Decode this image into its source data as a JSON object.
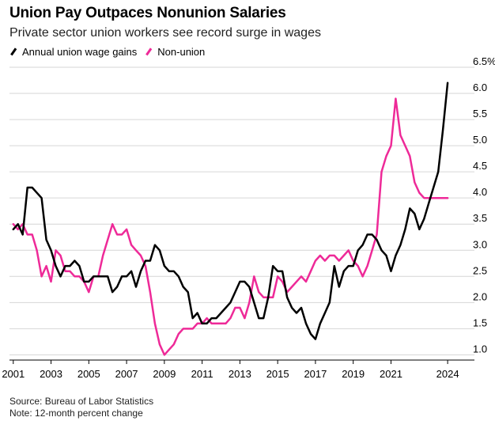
{
  "title": "Union Pay Outpaces Nonunion Salaries",
  "subtitle": "Private sector union workers see record surge in wages",
  "legend": [
    {
      "label": "Annual union wage gains",
      "color": "#000000"
    },
    {
      "label": "Non-union",
      "color": "#ee2a98"
    }
  ],
  "source": "Source: Bureau of Labor Statistics",
  "note": "Note: 12-month percent change",
  "chart_data": {
    "type": "line",
    "title": "Union Pay Outpaces Nonunion Salaries",
    "subtitle": "Private sector union workers see record surge in wages",
    "xlabel": "",
    "ylabel": "",
    "xlim": [
      2000.8,
      2025.0
    ],
    "ylim": [
      0.9,
      6.5
    ],
    "y_ticks": [
      1.0,
      1.5,
      2.0,
      2.5,
      3.0,
      3.5,
      4.0,
      4.5,
      5.0,
      5.5,
      6.0,
      6.5
    ],
    "y_tick_labels": [
      "1.0",
      "1.5",
      "2.0",
      "2.5",
      "3.0",
      "3.5",
      "4.0",
      "4.5",
      "5.0",
      "5.5",
      "6.0",
      "6.5%"
    ],
    "x_ticks": [
      2001,
      2003,
      2005,
      2007,
      2009,
      2011,
      2013,
      2015,
      2017,
      2019,
      2021,
      2024
    ],
    "x_tick_labels": [
      "2001",
      "2003",
      "2005",
      "2007",
      "2009",
      "2011",
      "2013",
      "2015",
      "2017",
      "2019",
      "2021",
      "2024"
    ],
    "grid": true,
    "legend_position": "top-left",
    "series": [
      {
        "name": "Annual union wage gains",
        "color": "#000000",
        "x": [
          2001.0,
          2001.25,
          2001.5,
          2001.75,
          2002.0,
          2002.25,
          2002.5,
          2002.75,
          2003.0,
          2003.25,
          2003.5,
          2003.75,
          2004.0,
          2004.25,
          2004.5,
          2004.75,
          2005.0,
          2005.25,
          2005.5,
          2005.75,
          2006.0,
          2006.25,
          2006.5,
          2006.75,
          2007.0,
          2007.25,
          2007.5,
          2007.75,
          2008.0,
          2008.25,
          2008.5,
          2008.75,
          2009.0,
          2009.25,
          2009.5,
          2009.75,
          2010.0,
          2010.25,
          2010.5,
          2010.75,
          2011.0,
          2011.25,
          2011.5,
          2011.75,
          2012.0,
          2012.25,
          2012.5,
          2012.75,
          2013.0,
          2013.25,
          2013.5,
          2013.75,
          2014.0,
          2014.25,
          2014.5,
          2014.75,
          2015.0,
          2015.25,
          2015.5,
          2015.75,
          2016.0,
          2016.25,
          2016.5,
          2016.75,
          2017.0,
          2017.25,
          2017.5,
          2017.75,
          2018.0,
          2018.25,
          2018.5,
          2018.75,
          2019.0,
          2019.25,
          2019.5,
          2019.75,
          2020.0,
          2020.25,
          2020.5,
          2020.75,
          2021.0,
          2021.25,
          2021.5,
          2021.75,
          2022.0,
          2022.25,
          2022.5,
          2022.75,
          2023.0,
          2023.25,
          2023.5,
          2023.75,
          2024.0
        ],
        "values": [
          3.4,
          3.5,
          3.3,
          4.2,
          4.2,
          4.1,
          4.0,
          3.2,
          3.0,
          2.7,
          2.5,
          2.7,
          2.7,
          2.8,
          2.7,
          2.4,
          2.4,
          2.5,
          2.5,
          2.5,
          2.5,
          2.2,
          2.3,
          2.5,
          2.5,
          2.6,
          2.3,
          2.6,
          2.8,
          2.8,
          3.1,
          3.0,
          2.7,
          2.6,
          2.6,
          2.5,
          2.3,
          2.2,
          1.7,
          1.8,
          1.6,
          1.6,
          1.7,
          1.7,
          1.8,
          1.9,
          2.0,
          2.2,
          2.4,
          2.4,
          2.3,
          2.0,
          1.7,
          1.7,
          2.1,
          2.7,
          2.6,
          2.6,
          2.1,
          1.9,
          1.8,
          1.9,
          1.6,
          1.4,
          1.3,
          1.6,
          1.8,
          2.0,
          2.7,
          2.3,
          2.6,
          2.7,
          2.7,
          3.0,
          3.1,
          3.3,
          3.3,
          3.2,
          3.0,
          2.9,
          2.6,
          2.9,
          3.1,
          3.4,
          3.8,
          3.7,
          3.4,
          3.6,
          3.9,
          4.2,
          4.5,
          5.3,
          6.2
        ]
      },
      {
        "name": "Non-union",
        "color": "#ee2a98",
        "x": [
          2001.0,
          2001.25,
          2001.5,
          2001.75,
          2002.0,
          2002.25,
          2002.5,
          2002.75,
          2003.0,
          2003.25,
          2003.5,
          2003.75,
          2004.0,
          2004.25,
          2004.5,
          2004.75,
          2005.0,
          2005.25,
          2005.5,
          2005.75,
          2006.0,
          2006.25,
          2006.5,
          2006.75,
          2007.0,
          2007.25,
          2007.5,
          2007.75,
          2008.0,
          2008.25,
          2008.5,
          2008.75,
          2009.0,
          2009.25,
          2009.5,
          2009.75,
          2010.0,
          2010.25,
          2010.5,
          2010.75,
          2011.0,
          2011.25,
          2011.5,
          2011.75,
          2012.0,
          2012.25,
          2012.5,
          2012.75,
          2013.0,
          2013.25,
          2013.5,
          2013.75,
          2014.0,
          2014.25,
          2014.5,
          2014.75,
          2015.0,
          2015.25,
          2015.5,
          2015.75,
          2016.0,
          2016.25,
          2016.5,
          2016.75,
          2017.0,
          2017.25,
          2017.5,
          2017.75,
          2018.0,
          2018.25,
          2018.5,
          2018.75,
          2019.0,
          2019.25,
          2019.5,
          2019.75,
          2020.0,
          2020.25,
          2020.5,
          2020.75,
          2021.0,
          2021.25,
          2021.5,
          2021.75,
          2022.0,
          2022.25,
          2022.5,
          2022.75,
          2023.0,
          2023.25,
          2023.5,
          2023.75,
          2024.0
        ],
        "values": [
          3.5,
          3.4,
          3.5,
          3.3,
          3.3,
          3.0,
          2.5,
          2.7,
          2.4,
          3.0,
          2.9,
          2.6,
          2.6,
          2.5,
          2.5,
          2.4,
          2.2,
          2.5,
          2.5,
          2.9,
          3.2,
          3.5,
          3.3,
          3.3,
          3.4,
          3.1,
          3.0,
          2.9,
          2.7,
          2.2,
          1.6,
          1.2,
          1.0,
          1.1,
          1.2,
          1.4,
          1.5,
          1.5,
          1.5,
          1.6,
          1.6,
          1.7,
          1.6,
          1.6,
          1.6,
          1.6,
          1.7,
          1.9,
          1.9,
          1.7,
          2.0,
          2.5,
          2.2,
          2.1,
          2.1,
          2.1,
          2.5,
          2.4,
          2.2,
          2.3,
          2.4,
          2.5,
          2.4,
          2.6,
          2.8,
          2.9,
          2.8,
          2.9,
          2.9,
          2.8,
          2.9,
          3.0,
          2.8,
          2.7,
          2.5,
          2.7,
          3.0,
          3.3,
          4.5,
          4.8,
          5.0,
          5.9,
          5.2,
          5.0,
          4.8,
          4.3,
          4.1,
          4.0,
          4.0,
          4.0,
          4.0,
          4.0,
          4.0
        ]
      }
    ]
  }
}
